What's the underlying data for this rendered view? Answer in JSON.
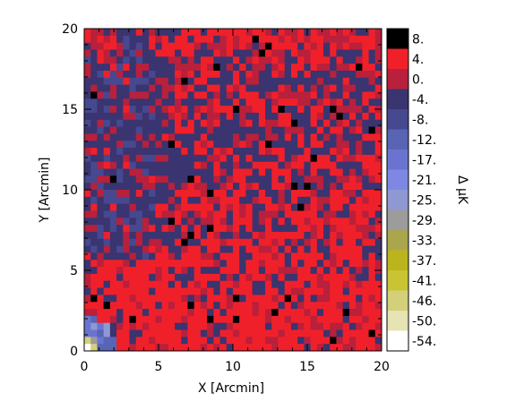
{
  "chart_data": {
    "type": "heatmap",
    "title": "",
    "xlabel": "X [Arcmin]",
    "ylabel": "Y [Arcmin]",
    "xlim": [
      0,
      20
    ],
    "ylim": [
      0,
      20
    ],
    "xticks": [
      "0",
      "5",
      "10",
      "15",
      "20"
    ],
    "yticks": [
      "0",
      "5",
      "10",
      "15",
      "20"
    ],
    "colorbar": {
      "label": "Δ μK",
      "levels": [
        "8.",
        "4.",
        "0.",
        "-4.",
        "-8.",
        "-12.",
        "-17.",
        "-21.",
        "-25.",
        "-29.",
        "-33.",
        "-37.",
        "-41.",
        "-46.",
        "-50.",
        "-54."
      ],
      "colors": [
        "#000000",
        "#f0202a",
        "#b8203c",
        "#3a3470",
        "#464890",
        "#5864b4",
        "#6a74d0",
        "#7c88e4",
        "#9098d4",
        "#9c9c9c",
        "#aaa64e",
        "#bcb41c",
        "#c8c434",
        "#d4d07a",
        "#e6e4b4",
        "#ffffff"
      ]
    },
    "grid": false
  }
}
